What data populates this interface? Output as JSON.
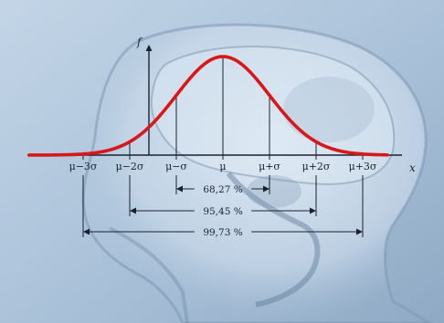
{
  "diagram": {
    "axis": {
      "x_label": "x",
      "y_label": "f"
    },
    "sigma_ticks": [
      {
        "k": -3,
        "label": "μ−3σ"
      },
      {
        "k": -2,
        "label": "μ−2σ"
      },
      {
        "k": -1,
        "label": "μ−σ"
      },
      {
        "k": 0,
        "label": "μ"
      },
      {
        "k": 1,
        "label": "μ+σ"
      },
      {
        "k": 2,
        "label": "μ+2σ"
      },
      {
        "k": 3,
        "label": "μ+3σ"
      }
    ],
    "intervals": [
      {
        "k": 1,
        "label": "68,27 %"
      },
      {
        "k": 2,
        "label": "95,45 %"
      },
      {
        "k": 3,
        "label": "99,73 %"
      }
    ],
    "colors": {
      "curve": "#d81818",
      "ink": "#1a2230",
      "background": "#a9c1d8",
      "scan": "#dbe7f2",
      "scan_dark": "#5f7a96"
    }
  }
}
